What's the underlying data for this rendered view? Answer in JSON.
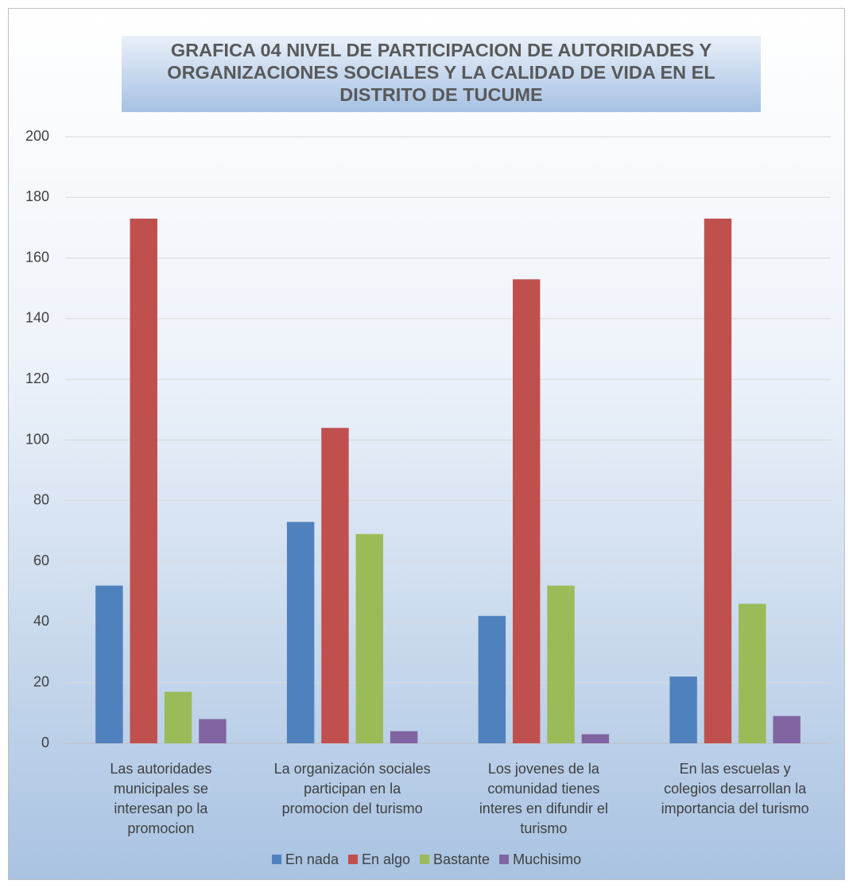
{
  "chart_data": {
    "type": "bar",
    "title": "GRAFICA 04 NIVEL DE PARTICIPACION  DE AUTORIDADES Y\nORGANIZACIONES SOCIALES Y LA CALIDAD DE VIDA EN EL\nDISTRITO DE TUCUME",
    "categories": [
      "Las autoridades\nmunicipales se\ninteresan po la\npromocion",
      "La organización sociales\nparticipan en la\npromocion del turismo",
      "Los  jovenes  de la\ncomunidad tienes\ninteres en difundir el\nturismo",
      "En las escuelas y\ncolegios desarrollan la\nimportancia del turismo"
    ],
    "series": [
      {
        "name": "En nada",
        "color": "#4f81bd",
        "values": [
          52,
          73,
          42,
          22
        ]
      },
      {
        "name": "En algo",
        "color": "#c0504d",
        "values": [
          173,
          104,
          153,
          173
        ]
      },
      {
        "name": "Bastante",
        "color": "#9bbb59",
        "values": [
          17,
          69,
          52,
          46
        ]
      },
      {
        "name": "Muchisimo",
        "color": "#8064a2",
        "values": [
          8,
          4,
          3,
          9
        ]
      }
    ],
    "ylim": [
      0,
      200
    ],
    "yticks": [
      0,
      20,
      40,
      60,
      80,
      100,
      120,
      140,
      160,
      180,
      200
    ],
    "grid": true,
    "legend": "bottom"
  }
}
